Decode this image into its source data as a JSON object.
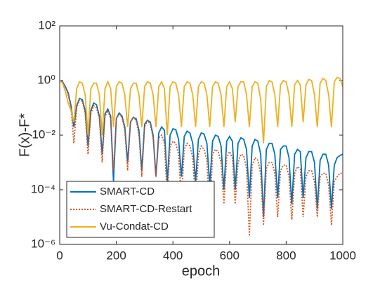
{
  "chart_data": {
    "type": "line",
    "xlabel": "epoch",
    "ylabel": "F(x)-F*",
    "log_y": true,
    "grid": false,
    "legend": "lower left",
    "xlim": [
      0,
      1000
    ],
    "xticks": [
      0,
      200,
      400,
      600,
      800,
      1000
    ],
    "ylim": [
      1e-06,
      100
    ],
    "yticks": [
      {
        "value": 1e-06,
        "label": "10⁻⁶"
      },
      {
        "value": 0.0001,
        "label": "10⁻⁴"
      },
      {
        "value": 0.01,
        "label": "10⁻²"
      },
      {
        "value": 1,
        "label": "10⁰"
      },
      {
        "value": 100,
        "label": "10²"
      }
    ],
    "x": [
      0,
      10,
      20,
      30,
      40,
      50,
      60,
      70,
      80,
      90,
      100,
      110,
      120,
      130,
      140,
      150,
      160,
      170,
      180,
      190,
      200,
      210,
      220,
      230,
      240,
      250,
      260,
      270,
      280,
      290,
      300,
      310,
      320,
      330,
      340,
      350,
      360,
      370,
      380,
      390,
      400,
      410,
      420,
      430,
      440,
      450,
      460,
      470,
      480,
      490,
      500,
      510,
      520,
      530,
      540,
      550,
      560,
      570,
      580,
      590,
      600,
      610,
      620,
      630,
      640,
      650,
      660,
      670,
      680,
      690,
      700,
      710,
      720,
      730,
      740,
      750,
      760,
      770,
      780,
      790,
      800,
      810,
      820,
      830,
      840,
      850,
      860,
      870,
      880,
      890,
      900,
      910,
      920,
      930,
      940,
      950,
      960,
      970,
      980,
      990,
      1000
    ],
    "series": [
      {
        "name": "SMART-CD",
        "color": "#0072bd",
        "dash": "solid",
        "values": [
          1,
          0.9,
          0.6,
          0.35,
          0.12,
          0.02,
          0.12,
          0.22,
          0.2,
          0.08,
          0.004,
          0.08,
          0.15,
          0.13,
          0.05,
          0.002,
          0.06,
          0.09,
          0.05,
          0.0002,
          0.04,
          0.065,
          0.05,
          0.02,
          0.001,
          0.03,
          0.045,
          0.04,
          0.015,
          0.0005,
          0.025,
          0.035,
          0.03,
          0.01,
          0.0003,
          0.012,
          0.02,
          0.015,
          0.0002,
          0.01,
          0.017,
          0.016,
          0.007,
          0.0003,
          0.009,
          0.014,
          0.012,
          0.005,
          0.0002,
          0.007,
          0.012,
          0.011,
          0.005,
          0.00015,
          0.006,
          0.01,
          0.009,
          0.004,
          0.0001,
          0.006,
          0.009,
          0.006,
          0.0001,
          0.005,
          0.008,
          0.007,
          0.003,
          5e-05,
          0.004,
          0.007,
          0.006,
          0.002,
          1e-05,
          0.003,
          0.005,
          0.005,
          0.002,
          5e-05,
          0.003,
          0.004,
          0.004,
          0.0015,
          3e-05,
          0.002,
          0.003,
          0.0025,
          5e-05,
          0.0015,
          0.0025,
          0.0025,
          0.001,
          2e-05,
          0.0012,
          0.002,
          0.002,
          0.0008,
          2e-05,
          0.0008,
          0.0015,
          0.0018,
          0.002
        ]
      },
      {
        "name": "SMART-CD-Restart",
        "color": "#d95319",
        "dash": "dotted",
        "values": [
          1,
          0.85,
          0.55,
          0.3,
          0.1,
          0.005,
          0.1,
          0.2,
          0.17,
          0.06,
          0.002,
          0.06,
          0.12,
          0.1,
          0.04,
          0.001,
          0.05,
          0.08,
          0.04,
          0.0005,
          0.04,
          0.06,
          0.045,
          0.015,
          0.0005,
          0.03,
          0.045,
          0.035,
          0.01,
          0.0003,
          0.02,
          0.035,
          0.025,
          0.008,
          0.0003,
          0.008,
          0.01,
          0.005,
          5e-05,
          0.004,
          0.006,
          0.005,
          0.002,
          4e-05,
          0.003,
          0.005,
          0.004,
          0.0015,
          3e-05,
          0.002,
          0.004,
          0.003,
          0.0012,
          1e-05,
          0.002,
          0.003,
          0.0025,
          0.001,
          3e-05,
          0.0015,
          0.0025,
          0.0015,
          3e-05,
          0.001,
          0.002,
          0.0018,
          0.0006,
          2e-06,
          0.0008,
          0.0015,
          0.0012,
          0.0004,
          5e-06,
          0.0006,
          0.001,
          0.001,
          0.0004,
          1e-05,
          0.0005,
          0.0008,
          0.0008,
          0.0003,
          8e-06,
          0.0004,
          0.0007,
          0.0006,
          1e-05,
          0.0003,
          0.0005,
          0.0005,
          0.0002,
          1e-05,
          0.0003,
          0.0004,
          0.0004,
          0.00015,
          5e-06,
          0.0002,
          0.0003,
          0.0004,
          0.0004
        ]
      },
      {
        "name": "Vu-Condat-CD",
        "color": "#edb120",
        "dash": "solid",
        "values": [
          1,
          0.8,
          0.4,
          0.15,
          0.08,
          0.03,
          0.5,
          0.9,
          0.8,
          0.3,
          0.01,
          0.5,
          0.8,
          0.8,
          0.3,
          0.01,
          0.5,
          0.9,
          0.5,
          0.02,
          0.6,
          0.9,
          0.8,
          0.3,
          0.02,
          0.5,
          0.8,
          0.8,
          0.3,
          0.02,
          0.6,
          0.9,
          0.8,
          0.3,
          0.02,
          0.6,
          0.9,
          0.5,
          0.01,
          0.6,
          0.9,
          0.8,
          0.3,
          0.02,
          0.6,
          0.9,
          0.8,
          0.3,
          0.02,
          0.6,
          0.9,
          0.8,
          0.3,
          0.02,
          0.6,
          0.9,
          0.8,
          0.3,
          0.02,
          0.6,
          0.9,
          0.5,
          0.03,
          0.6,
          0.9,
          0.9,
          0.3,
          0.02,
          0.6,
          0.9,
          0.8,
          0.2,
          0.005,
          0.6,
          1,
          0.9,
          0.3,
          0.02,
          0.7,
          1,
          0.9,
          0.3,
          0.02,
          0.7,
          1,
          0.7,
          0.03,
          0.7,
          1.1,
          1,
          0.3,
          0.02,
          0.8,
          1.2,
          1,
          0.3,
          0.02,
          0.9,
          1.3,
          1.2,
          0.6
        ]
      }
    ]
  }
}
